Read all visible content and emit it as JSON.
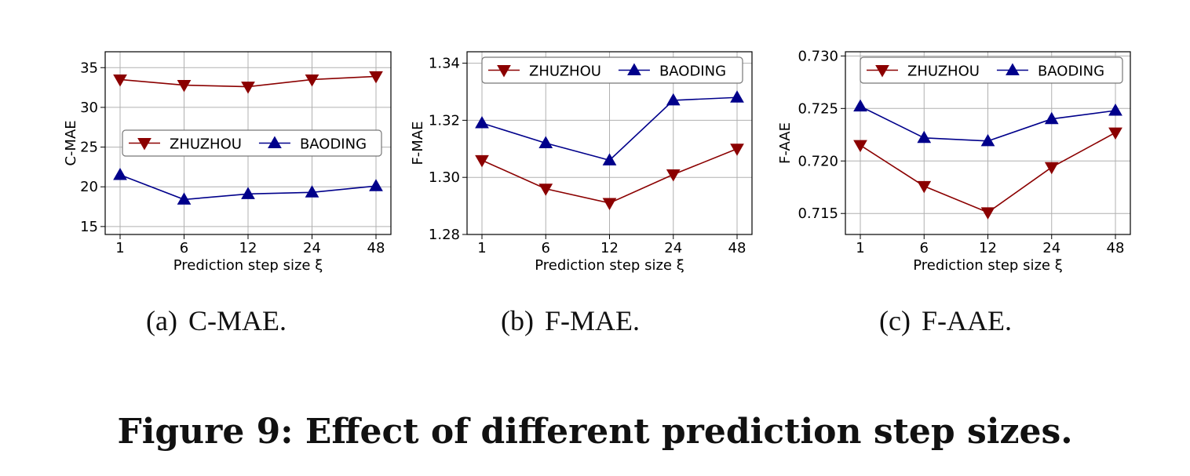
{
  "chart_data": [
    {
      "type": "line",
      "ylabel": "C-MAE",
      "xlabel": "Prediction step size ξ",
      "categories": [
        "1",
        "6",
        "12",
        "24",
        "48"
      ],
      "ylim": [
        14,
        37
      ],
      "yticks": [
        15,
        20,
        25,
        30,
        35
      ],
      "ytick_labels": [
        "15",
        "20",
        "25",
        "30",
        "35"
      ],
      "grid": true,
      "legend_position": "center-right",
      "series": [
        {
          "name": "ZHUZHOU",
          "values": [
            33.5,
            32.8,
            32.6,
            33.5,
            33.9
          ],
          "color": "#8b0000",
          "marker": "triangle-down"
        },
        {
          "name": "BAODING",
          "values": [
            21.5,
            18.4,
            19.1,
            19.3,
            20.1
          ],
          "color": "#00008b",
          "marker": "triangle-up"
        }
      ],
      "caption_label": "(a)",
      "caption_text": "C-MAE."
    },
    {
      "type": "line",
      "ylabel": "F-MAE",
      "xlabel": "Prediction step size ξ",
      "categories": [
        "1",
        "6",
        "12",
        "24",
        "48"
      ],
      "ylim": [
        1.28,
        1.344
      ],
      "yticks": [
        1.28,
        1.3,
        1.32,
        1.34
      ],
      "ytick_labels": [
        "1.28",
        "1.30",
        "1.32",
        "1.34"
      ],
      "grid": true,
      "legend_position": "top",
      "series": [
        {
          "name": "ZHUZHOU",
          "values": [
            1.306,
            1.296,
            1.291,
            1.301,
            1.31
          ],
          "color": "#8b0000",
          "marker": "triangle-down"
        },
        {
          "name": "BAODING",
          "values": [
            1.319,
            1.312,
            1.306,
            1.327,
            1.328
          ],
          "color": "#00008b",
          "marker": "triangle-up"
        }
      ],
      "caption_label": "(b)",
      "caption_text": "F-MAE."
    },
    {
      "type": "line",
      "ylabel": "F-AAE",
      "xlabel": "Prediction step size ξ",
      "categories": [
        "1",
        "6",
        "12",
        "24",
        "48"
      ],
      "ylim": [
        0.713,
        0.7304
      ],
      "yticks": [
        0.715,
        0.72,
        0.725,
        0.73
      ],
      "ytick_labels": [
        "0.715",
        "0.720",
        "0.725",
        "0.730"
      ],
      "grid": true,
      "legend_position": "top",
      "series": [
        {
          "name": "ZHUZHOU",
          "values": [
            0.7215,
            0.7176,
            0.7151,
            0.7194,
            0.7227
          ],
          "color": "#8b0000",
          "marker": "triangle-down"
        },
        {
          "name": "BAODING",
          "values": [
            0.7252,
            0.7222,
            0.7219,
            0.724,
            0.7248
          ],
          "color": "#00008b",
          "marker": "triangle-up"
        }
      ],
      "caption_label": "(c)",
      "caption_text": "F-AAE."
    }
  ],
  "figure_caption": "Figure 9: Effect of different prediction step sizes."
}
